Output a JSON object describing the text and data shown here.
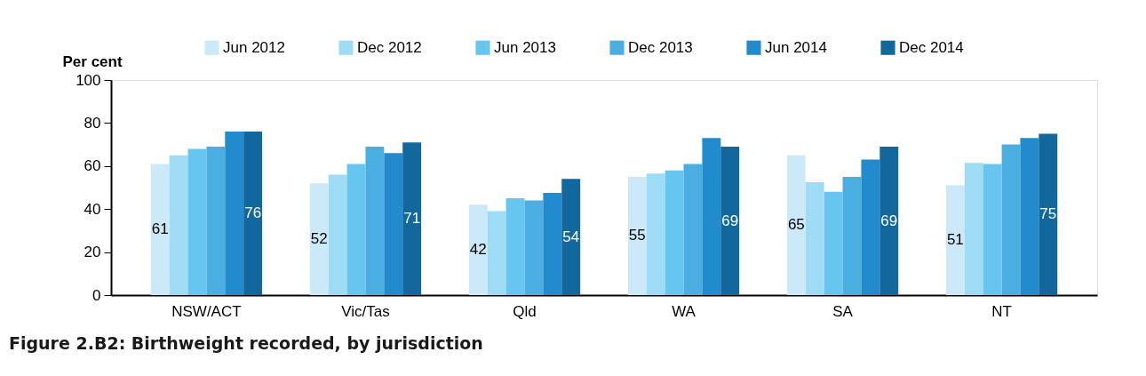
{
  "chart_data": {
    "type": "bar",
    "title": "Figure 2.B2: Birthweight recorded, by jurisdiction",
    "ylabel": "Per cent",
    "categories": [
      "NSW/ACT",
      "Vic/Tas",
      "Qld",
      "WA",
      "SA",
      "NT"
    ],
    "series": [
      {
        "name": "Jun 2012",
        "color": "#cce9f9",
        "values": [
          61,
          52,
          42,
          55,
          65,
          51
        ],
        "value_labels": [
          "61",
          "52",
          "42",
          "55",
          "65",
          "51"
        ]
      },
      {
        "name": "Dec 2012",
        "color": "#9edcf6",
        "values": [
          65,
          56,
          39,
          56.5,
          52.5,
          61.5
        ]
      },
      {
        "name": "Jun 2013",
        "color": "#67c6ef",
        "values": [
          68,
          61,
          45,
          58,
          48,
          61
        ]
      },
      {
        "name": "Dec 2013",
        "color": "#4aaee0",
        "values": [
          69,
          69,
          44,
          61,
          55,
          70
        ]
      },
      {
        "name": "Jun 2014",
        "color": "#228bcd",
        "values": [
          76,
          66,
          47.5,
          73,
          63,
          73
        ]
      },
      {
        "name": "Dec 2014",
        "color": "#12679d",
        "values": [
          76,
          71,
          54,
          69,
          69,
          75
        ],
        "value_labels": [
          "76",
          "71",
          "54",
          "69",
          "69",
          "75"
        ]
      }
    ],
    "ylim": [
      0,
      100
    ],
    "yticks": [
      0,
      20,
      40,
      60,
      80,
      100
    ],
    "grid": false,
    "legend": "top"
  }
}
